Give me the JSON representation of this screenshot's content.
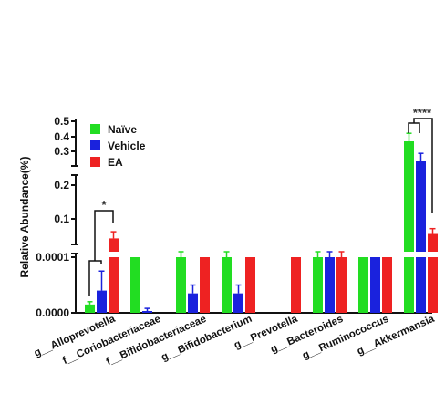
{
  "chart_data": {
    "type": "bar",
    "ylabel": "Relative Abundance(%)",
    "y_axis_style": "broken, with three segments of different scale",
    "y_ticks": [
      "0.0000",
      "0.0001",
      "0.1",
      "0.2",
      "0.3",
      "0.4",
      "0.5"
    ],
    "categories": [
      "g__Alloprevotella",
      "f__Coriobacteriaceae",
      "f__Bifidobacteriaceae",
      "g__Bifidobacterium",
      "g__Prevotella",
      "g__Bacteroides",
      "g__Ruminococcus",
      "g__Akkermansia"
    ],
    "series": [
      {
        "name": "Naïve",
        "color": "#22dd22",
        "values": [
          1.5e-05,
          0.0001,
          0.0001,
          0.0001,
          0,
          0.0001,
          0.0001,
          0.4
        ],
        "errors": [
          5e-06,
          0,
          5e-06,
          5e-06,
          0,
          5e-06,
          0,
          0.04
        ]
      },
      {
        "name": "Vehicle",
        "color": "#1a22dd",
        "values": [
          4e-05,
          3e-06,
          3.5e-05,
          3.5e-05,
          0,
          0.0001,
          0.0001,
          0.3
        ],
        "errors": [
          3.5e-05,
          5e-06,
          1.5e-05,
          1.5e-05,
          0,
          5e-06,
          0,
          0.04
        ]
      },
      {
        "name": "EA",
        "color": "#ee2222",
        "values": [
          0.08,
          0,
          0.0001,
          0.0001,
          0.0001,
          0.0001,
          0.0001,
          0.09
        ],
        "errors": [
          0.015,
          0,
          0,
          0,
          0,
          1e-05,
          0,
          0.012
        ]
      }
    ],
    "legend": {
      "placement": "top-left",
      "entries": [
        "Naïve",
        "Vehicle",
        "EA"
      ]
    },
    "annotations": [
      {
        "category": "g__Alloprevotella",
        "text": "*"
      },
      {
        "category": "g__Akkermansia",
        "text": "****"
      }
    ]
  }
}
